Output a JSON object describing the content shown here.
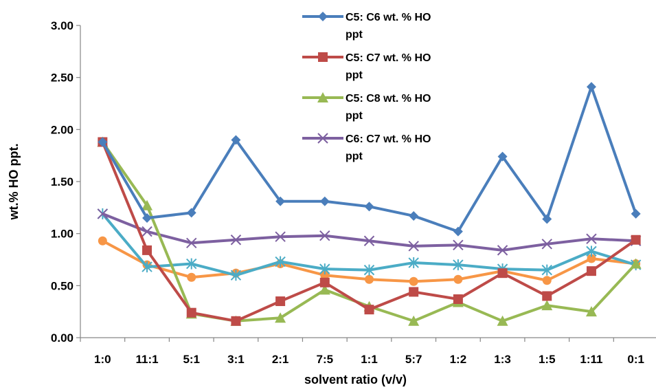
{
  "chart_data": {
    "type": "line",
    "title": "",
    "xlabel": "solvent ratio (v/v)",
    "ylabel": "wt.% HO ppt.",
    "ylim": [
      0,
      3
    ],
    "y_ticks": [
      "0.00",
      "0.50",
      "1.00",
      "1.50",
      "2.00",
      "2.50",
      "3.00"
    ],
    "categories": [
      "1:0",
      "11:1",
      "5:1",
      "3:1",
      "2:1",
      "7:5",
      "1:1",
      "5:7",
      "1:2",
      "1:3",
      "1:5",
      "1:11",
      "0:1"
    ],
    "grid": "none",
    "legend_position": "top-right",
    "series": [
      {
        "name": "C5: C6 wt. % HO ppt",
        "legend_lines": [
          "C5: C6 wt. % HO",
          "ppt"
        ],
        "color": "#4a7ebb",
        "marker": "diamond",
        "values": [
          1.88,
          1.15,
          1.2,
          1.9,
          1.31,
          1.31,
          1.26,
          1.17,
          1.02,
          1.74,
          1.14,
          2.41,
          1.19
        ]
      },
      {
        "name": "C5: C7 wt. % HO ppt",
        "legend_lines": [
          "C5: C7 wt. % HO",
          "ppt"
        ],
        "color": "#be4b48",
        "marker": "square",
        "values": [
          1.88,
          0.84,
          0.24,
          0.16,
          0.35,
          0.53,
          0.27,
          0.44,
          0.37,
          0.62,
          0.4,
          0.64,
          0.94
        ]
      },
      {
        "name": "C5: C8 wt. % HO ppt",
        "legend_lines": [
          "C5: C8 wt. % HO",
          "ppt"
        ],
        "color": "#98b954",
        "marker": "triangle",
        "values": [
          1.88,
          1.27,
          0.23,
          0.16,
          0.19,
          0.46,
          0.3,
          0.16,
          0.34,
          0.16,
          0.31,
          0.25,
          0.71
        ]
      },
      {
        "name": "C6: C7 wt. % HO ppt",
        "legend_lines": [
          "C6: C7 wt. % HO",
          "ppt"
        ],
        "color": "#7d60a0",
        "marker": "x",
        "values": [
          1.19,
          1.02,
          0.91,
          0.94,
          0.97,
          0.98,
          0.93,
          0.88,
          0.89,
          0.84,
          0.9,
          0.95,
          0.93
        ]
      },
      {
        "name": "",
        "legend_lines": [],
        "color": "#4bacc6",
        "marker": "star",
        "values": [
          1.19,
          0.68,
          0.71,
          0.6,
          0.73,
          0.66,
          0.65,
          0.72,
          0.7,
          0.66,
          0.65,
          0.83,
          0.7
        ]
      },
      {
        "name": "",
        "legend_lines": [],
        "color": "#f79646",
        "marker": "circle",
        "values": [
          0.93,
          0.7,
          0.58,
          0.62,
          0.71,
          0.6,
          0.56,
          0.54,
          0.56,
          0.64,
          0.55,
          0.76,
          0.71
        ]
      }
    ]
  }
}
